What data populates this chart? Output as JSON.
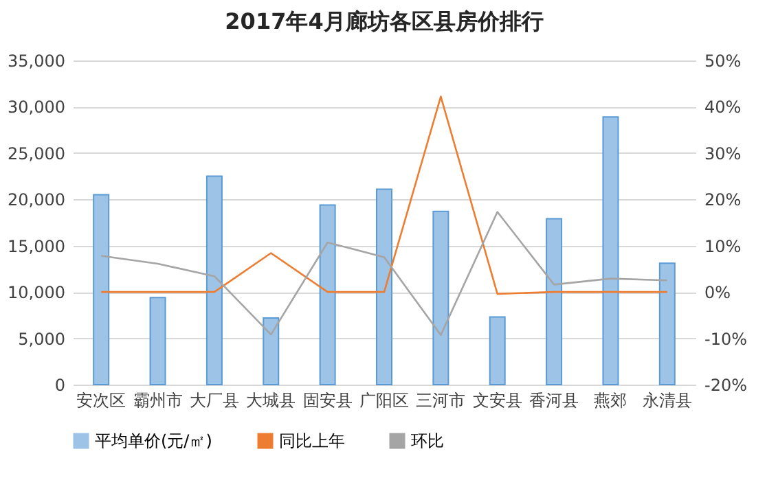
{
  "chart_data": {
    "type": "bar",
    "title": "2017年4月廊坊各区县房价排行",
    "categories": [
      "安次区",
      "霸州市",
      "大厂县",
      "大城县",
      "固安县",
      "广阳区",
      "三河市",
      "文安县",
      "香河县",
      "燕郊",
      "永清县"
    ],
    "series": [
      {
        "name": "平均单价(元/㎡)",
        "color": "#9dc3e6",
        "values": [
          20500,
          9400,
          22500,
          7200,
          19400,
          21100,
          18700,
          7300,
          17900,
          28900,
          13100
        ]
      },
      {
        "name": "同比上年",
        "type": "line",
        "axis": "y2",
        "color": "#ed7d31",
        "values": [
          0,
          0,
          0,
          8.4,
          0,
          0,
          42.2,
          -0.4,
          0,
          0,
          0
        ]
      },
      {
        "name": "环比",
        "type": "line",
        "axis": "y2",
        "color": "#a5a5a5",
        "values": [
          7.8,
          6.1,
          3.4,
          -9.2,
          10.7,
          7.5,
          -9.3,
          17.3,
          1.6,
          2.9,
          2.5
        ]
      }
    ],
    "ylim": [
      0,
      35000
    ],
    "yticks": [
      0,
      {
        "value": 5000,
        "label": "5,000"
      },
      {
        "value": 10000,
        "label": "10,000"
      },
      {
        "value": 15000,
        "label": "15,000"
      },
      {
        "value": 20000,
        "label": "20,000"
      },
      {
        "value": 25000,
        "label": "25,000"
      },
      {
        "value": 30000,
        "label": "30,000"
      },
      {
        "value": 35000,
        "label": "35,000"
      }
    ],
    "y2lim": [
      -20,
      50
    ],
    "y2ticks": [
      {
        "value": -20,
        "label": "-20%"
      },
      {
        "value": -10,
        "label": "-10%"
      },
      {
        "value": 0,
        "label": "0%"
      },
      {
        "value": 10,
        "label": "10%"
      },
      {
        "value": 20,
        "label": "20%"
      },
      {
        "value": 30,
        "label": "30%"
      },
      {
        "value": 40,
        "label": "40%"
      },
      {
        "value": 50,
        "label": "50%"
      }
    ],
    "grid": "y",
    "legend": "bottom"
  }
}
